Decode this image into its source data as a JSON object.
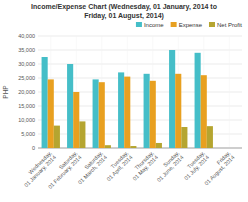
{
  "chart_data": {
    "type": "bar",
    "title": "Income/Expense Chart (Wednesday, 01 January, 2014 to\nFriday, 01 August, 2014)",
    "y_label": "PHP",
    "categories": [
      "Wednesday,\n01 January, 2014",
      "Saturday,\n01 February, 2014",
      "Saturday,\n01 March, 2014",
      "Tuesday,\n01 April, 2014",
      "Thursday,\n01 May, 2014",
      "Sunday,\n01 June, 2014",
      "Tuesday,\n01 July, 2014",
      "Friday,\n01 August, 2014"
    ],
    "series": [
      {
        "name": "Income",
        "color": "#45bec8",
        "values": [
          32500,
          30000,
          24500,
          27000,
          26500,
          35000,
          34000,
          0
        ]
      },
      {
        "name": "Expense",
        "color": "#e8a020",
        "values": [
          24500,
          20000,
          23500,
          25500,
          24000,
          26500,
          26000,
          0
        ]
      },
      {
        "name": "Net Profit",
        "color": "#b5a530",
        "values": [
          8000,
          9500,
          1000,
          700,
          1800,
          7500,
          7800,
          0
        ]
      }
    ],
    "ylim": [
      0,
      40000
    ],
    "yticks": [
      0,
      {
        "value": 5000,
        "label": "5,000"
      },
      {
        "value": 10000,
        "label": "10,000"
      },
      {
        "value": 15000,
        "label": "15,000"
      },
      {
        "value": 20000,
        "label": "20,000"
      },
      {
        "value": 25000,
        "label": "25,000"
      },
      {
        "value": 30000,
        "label": "30,000"
      },
      {
        "value": 35000,
        "label": "35,000"
      },
      {
        "value": 40000,
        "label": "40,000"
      }
    ],
    "grid": true,
    "legend": "upper right"
  }
}
